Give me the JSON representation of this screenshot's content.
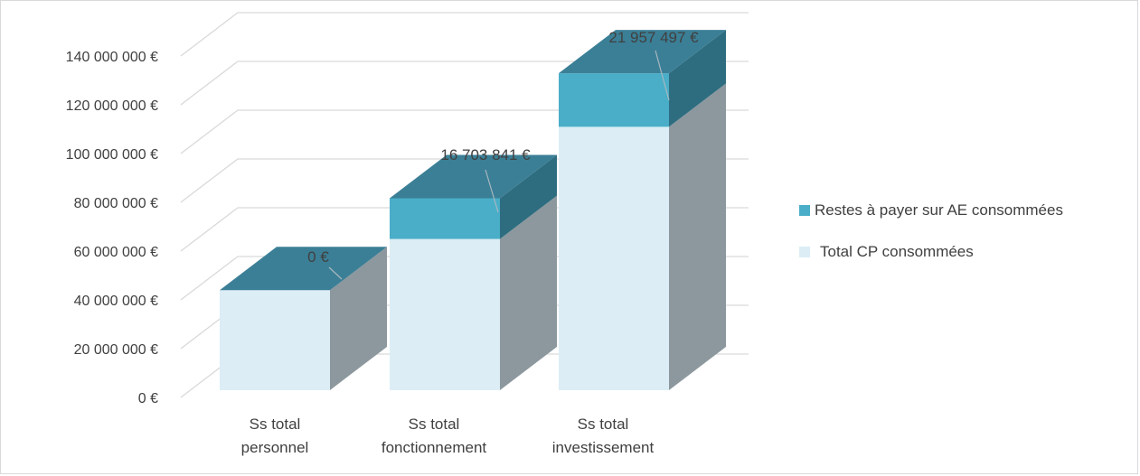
{
  "chart_data": {
    "type": "bar",
    "stacked": true,
    "three_d": true,
    "categories": [
      [
        "Ss total",
        "personnel"
      ],
      [
        "Ss total",
        "fonctionnement"
      ],
      [
        "Ss total",
        "investissement"
      ]
    ],
    "series": [
      {
        "name": "Total CP consommées",
        "values": [
          41000000,
          62000000,
          108000000
        ],
        "color": "#dcedf5"
      },
      {
        "name": "Restes à payer sur AE consommées",
        "values": [
          0,
          16703841,
          21957497
        ],
        "color": "#4aaec8"
      }
    ],
    "data_labels": [
      "0 €",
      "16 703 841 €",
      "21 957 497 €"
    ],
    "ylim": [
      0,
      140000000
    ],
    "y_ticks": [
      {
        "value": 0,
        "label": "0 €"
      },
      {
        "value": 20000000,
        "label": "20 000 000 €"
      },
      {
        "value": 40000000,
        "label": "40 000 000 €"
      },
      {
        "value": 60000000,
        "label": "60 000 000 €"
      },
      {
        "value": 80000000,
        "label": "80 000 000 €"
      },
      {
        "value": 100000000,
        "label": "100 000 000 €"
      },
      {
        "value": 120000000,
        "label": "120 000 000 €"
      },
      {
        "value": 140000000,
        "label": "140 000 000 €"
      }
    ],
    "grid": true,
    "legend": "right",
    "colors": {
      "top": "#3b7f96",
      "side_stack": "#2e6d80",
      "side_base": "#8c989e",
      "grid": "#d9d9d9"
    }
  }
}
